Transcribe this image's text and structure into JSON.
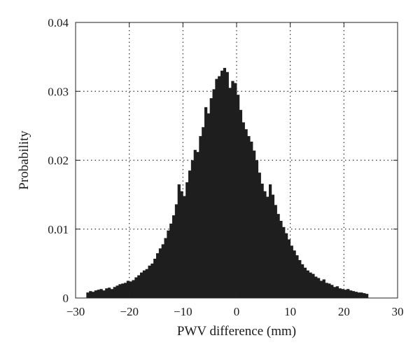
{
  "chart_data": {
    "type": "bar",
    "subtype": "histogram",
    "title": "",
    "xlabel": "PWV difference (mm)",
    "ylabel": "Probability",
    "xlim": [
      -30,
      30
    ],
    "ylim": [
      0,
      0.04
    ],
    "grid": true,
    "bar_color": "#1e1e1e",
    "bin_width": 0.5,
    "x_ticks": [
      -30,
      -20,
      -10,
      0,
      10,
      20,
      30
    ],
    "x_tick_labels": [
      "−30",
      "−20",
      "−10",
      "0",
      "10",
      "20",
      "30"
    ],
    "y_ticks": [
      0,
      0.01,
      0.02,
      0.03,
      0.04
    ],
    "y_tick_labels": [
      "0",
      "0.01",
      "0.02",
      "0.03",
      "0.04"
    ],
    "x": [
      -28.0,
      -27.5,
      -27.0,
      -26.5,
      -26.0,
      -25.5,
      -25.0,
      -24.5,
      -24.0,
      -23.5,
      -23.0,
      -22.5,
      -22.0,
      -21.5,
      -21.0,
      -20.5,
      -20.0,
      -19.5,
      -19.0,
      -18.5,
      -18.0,
      -17.5,
      -17.0,
      -16.5,
      -16.0,
      -15.5,
      -15.0,
      -14.5,
      -14.0,
      -13.5,
      -13.0,
      -12.5,
      -12.0,
      -11.5,
      -11.0,
      -10.5,
      -10.0,
      -9.5,
      -9.0,
      -8.5,
      -8.0,
      -7.5,
      -7.0,
      -6.5,
      -6.0,
      -5.5,
      -5.0,
      -4.5,
      -4.0,
      -3.5,
      -3.0,
      -2.5,
      -2.0,
      -1.5,
      -1.0,
      -0.5,
      0.0,
      0.5,
      1.0,
      1.5,
      2.0,
      2.5,
      3.0,
      3.5,
      4.0,
      4.5,
      5.0,
      5.5,
      6.0,
      6.5,
      7.0,
      7.5,
      8.0,
      8.5,
      9.0,
      9.5,
      10.0,
      10.5,
      11.0,
      11.5,
      12.0,
      12.5,
      13.0,
      13.5,
      14.0,
      14.5,
      15.0,
      15.5,
      16.0,
      16.5,
      17.0,
      17.5,
      18.0,
      18.5,
      19.0,
      19.5,
      20.0,
      20.5,
      21.0,
      21.5,
      22.0,
      22.5,
      23.0,
      23.5,
      24.0
    ],
    "values": [
      0.0008,
      0.001,
      0.0009,
      0.0011,
      0.0012,
      0.0013,
      0.0011,
      0.0014,
      0.0015,
      0.0013,
      0.0016,
      0.0018,
      0.002,
      0.0021,
      0.0022,
      0.0025,
      0.0024,
      0.0026,
      0.003,
      0.0033,
      0.0037,
      0.004,
      0.0042,
      0.0047,
      0.005,
      0.0057,
      0.0065,
      0.0072,
      0.0078,
      0.0087,
      0.0098,
      0.0108,
      0.012,
      0.0136,
      0.0165,
      0.0155,
      0.0148,
      0.0168,
      0.0185,
      0.02,
      0.0215,
      0.0212,
      0.0235,
      0.0248,
      0.0277,
      0.0268,
      0.029,
      0.0303,
      0.0318,
      0.0322,
      0.033,
      0.0334,
      0.0328,
      0.0305,
      0.0315,
      0.0312,
      0.0295,
      0.0273,
      0.0255,
      0.0245,
      0.0235,
      0.0227,
      0.0214,
      0.02,
      0.0182,
      0.0166,
      0.0155,
      0.0147,
      0.0165,
      0.015,
      0.0135,
      0.0122,
      0.0112,
      0.0103,
      0.0094,
      0.0085,
      0.0076,
      0.0069,
      0.0062,
      0.0055,
      0.0049,
      0.0044,
      0.004,
      0.0037,
      0.0035,
      0.0031,
      0.0029,
      0.0025,
      0.0027,
      0.0022,
      0.0021,
      0.0019,
      0.0016,
      0.0017,
      0.0014,
      0.0013,
      0.0012,
      0.0013,
      0.0011,
      0.001,
      0.0009,
      0.0008,
      0.0008,
      0.0007,
      0.0006
    ]
  }
}
